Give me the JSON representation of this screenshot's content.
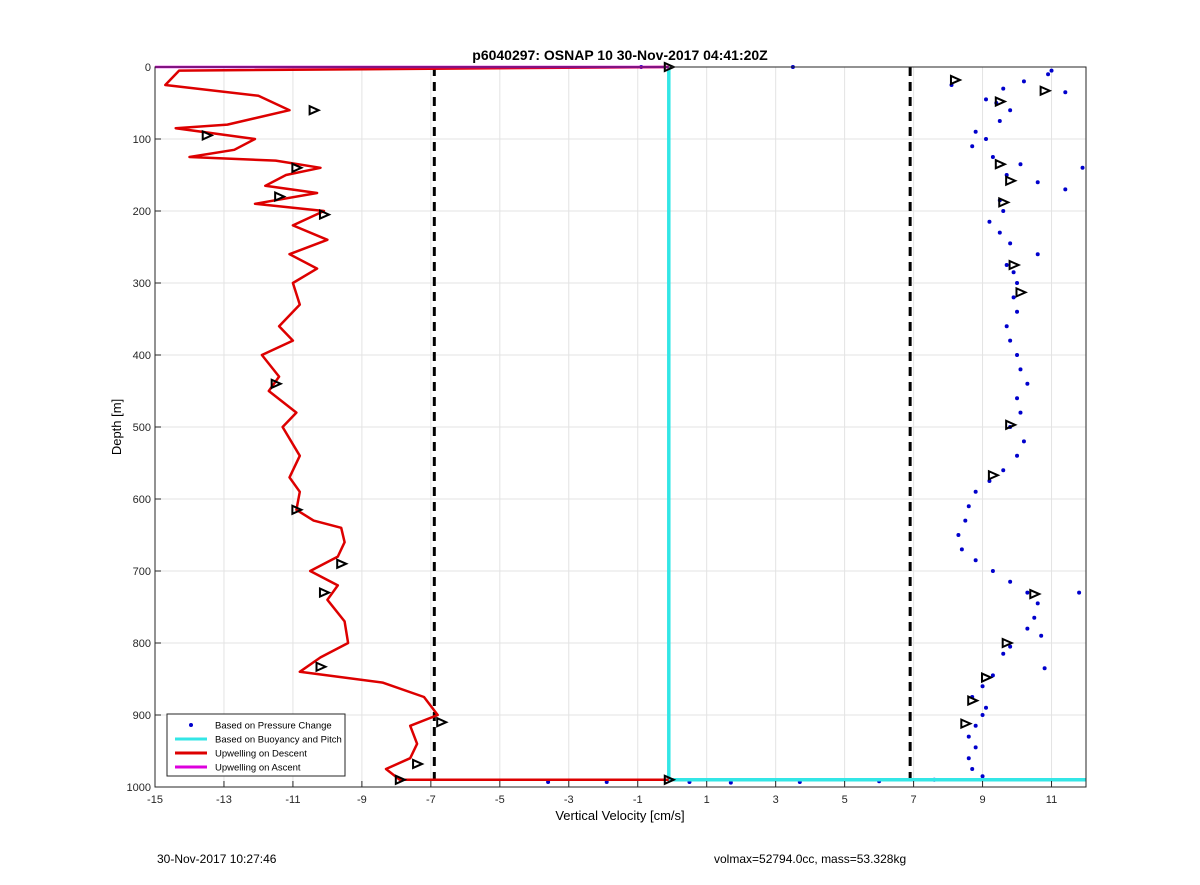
{
  "chart_data": {
    "type": "scatter",
    "title": "p6040297: OSNAP 10 30-Nov-2017 04:41:20Z",
    "xlabel": "Vertical Velocity [cm/s]",
    "ylabel": "Depth [m]",
    "xlim": [
      -15,
      12
    ],
    "ylim": [
      0,
      1000
    ],
    "y_reversed": true,
    "xticks": [
      -15,
      -13,
      -11,
      -9,
      -7,
      -5,
      -3,
      -1,
      1,
      3,
      5,
      7,
      9,
      11
    ],
    "yticks": [
      0,
      100,
      200,
      300,
      400,
      500,
      600,
      700,
      800,
      900,
      1000
    ],
    "grid": true,
    "legend_location": "bottom-left",
    "reference_lines": [
      {
        "x": -6.9,
        "style": "dashed",
        "color": "#000000"
      },
      {
        "x": 6.9,
        "style": "dashed",
        "color": "#000000"
      }
    ],
    "series": [
      {
        "name": "Based on Pressure Change",
        "style": "markers",
        "color": "#0000cc",
        "points": [
          [
            3.5,
            0
          ],
          [
            -0.9,
            0
          ],
          [
            11.0,
            5
          ],
          [
            10.9,
            10
          ],
          [
            10.2,
            20
          ],
          [
            8.1,
            25
          ],
          [
            9.6,
            30
          ],
          [
            11.4,
            35
          ],
          [
            9.1,
            45
          ],
          [
            9.4,
            50
          ],
          [
            9.8,
            60
          ],
          [
            9.5,
            75
          ],
          [
            8.8,
            90
          ],
          [
            9.1,
            100
          ],
          [
            8.7,
            110
          ],
          [
            9.3,
            125
          ],
          [
            10.1,
            135
          ],
          [
            11.9,
            140
          ],
          [
            9.7,
            150
          ],
          [
            10.6,
            160
          ],
          [
            11.4,
            170
          ],
          [
            9.5,
            185
          ],
          [
            9.6,
            200
          ],
          [
            9.2,
            215
          ],
          [
            9.5,
            230
          ],
          [
            9.8,
            245
          ],
          [
            10.6,
            260
          ],
          [
            9.7,
            275
          ],
          [
            9.9,
            285
          ],
          [
            10.0,
            300
          ],
          [
            9.9,
            320
          ],
          [
            10.0,
            340
          ],
          [
            9.7,
            360
          ],
          [
            9.8,
            380
          ],
          [
            10.0,
            400
          ],
          [
            10.1,
            420
          ],
          [
            10.3,
            440
          ],
          [
            10.0,
            460
          ],
          [
            10.1,
            480
          ],
          [
            9.8,
            500
          ],
          [
            10.2,
            520
          ],
          [
            10.0,
            540
          ],
          [
            9.6,
            560
          ],
          [
            9.2,
            575
          ],
          [
            8.8,
            590
          ],
          [
            8.6,
            610
          ],
          [
            8.5,
            630
          ],
          [
            8.3,
            650
          ],
          [
            8.4,
            670
          ],
          [
            8.8,
            685
          ],
          [
            9.3,
            700
          ],
          [
            9.8,
            715
          ],
          [
            10.3,
            730
          ],
          [
            11.8,
            730
          ],
          [
            10.6,
            745
          ],
          [
            10.5,
            765
          ],
          [
            10.3,
            780
          ],
          [
            10.7,
            790
          ],
          [
            9.8,
            805
          ],
          [
            9.6,
            815
          ],
          [
            10.8,
            835
          ],
          [
            9.3,
            845
          ],
          [
            9.0,
            860
          ],
          [
            8.7,
            875
          ],
          [
            9.1,
            890
          ],
          [
            9.0,
            900
          ],
          [
            8.8,
            915
          ],
          [
            8.6,
            930
          ],
          [
            8.8,
            945
          ],
          [
            8.6,
            960
          ],
          [
            8.7,
            975
          ],
          [
            9.0,
            985
          ],
          [
            7.6,
            990
          ],
          [
            6.0,
            992
          ],
          [
            3.7,
            993
          ],
          [
            1.7,
            994
          ],
          [
            0.5,
            993
          ],
          [
            -1.9,
            993
          ],
          [
            -3.6,
            993
          ]
        ]
      },
      {
        "name": "Based on Buoyancy and Pitch",
        "style": "line",
        "color": "#33e6e6",
        "points": [
          [
            -0.1,
            0
          ],
          [
            -0.1,
            100
          ],
          [
            -0.1,
            200
          ],
          [
            -0.1,
            300
          ],
          [
            -0.1,
            400
          ],
          [
            -0.1,
            500
          ],
          [
            -0.1,
            600
          ],
          [
            -0.1,
            700
          ],
          [
            -0.1,
            800
          ],
          [
            -0.1,
            900
          ],
          [
            -0.1,
            990
          ],
          [
            12.0,
            990
          ]
        ]
      },
      {
        "name": "Upwelling on Descent",
        "style": "line",
        "color": "#dd0000",
        "points": [
          [
            -0.1,
            0
          ],
          [
            -14.3,
            5
          ],
          [
            -14.7,
            25
          ],
          [
            -12.0,
            40
          ],
          [
            -11.1,
            60
          ],
          [
            -12.9,
            80
          ],
          [
            -14.4,
            85
          ],
          [
            -12.1,
            100
          ],
          [
            -12.7,
            115
          ],
          [
            -14.0,
            125
          ],
          [
            -11.5,
            130
          ],
          [
            -10.2,
            140
          ],
          [
            -11.2,
            150
          ],
          [
            -11.8,
            165
          ],
          [
            -10.3,
            175
          ],
          [
            -12.1,
            190
          ],
          [
            -10.1,
            200
          ],
          [
            -11.0,
            220
          ],
          [
            -10.0,
            240
          ],
          [
            -11.1,
            260
          ],
          [
            -10.3,
            280
          ],
          [
            -11.0,
            300
          ],
          [
            -10.8,
            330
          ],
          [
            -11.4,
            360
          ],
          [
            -11.0,
            380
          ],
          [
            -11.9,
            400
          ],
          [
            -11.4,
            430
          ],
          [
            -11.7,
            450
          ],
          [
            -10.9,
            480
          ],
          [
            -11.3,
            500
          ],
          [
            -10.8,
            540
          ],
          [
            -11.1,
            570
          ],
          [
            -10.8,
            590
          ],
          [
            -10.9,
            615
          ],
          [
            -10.4,
            630
          ],
          [
            -9.6,
            640
          ],
          [
            -9.5,
            660
          ],
          [
            -9.7,
            680
          ],
          [
            -10.5,
            700
          ],
          [
            -9.7,
            720
          ],
          [
            -10.0,
            740
          ],
          [
            -9.5,
            770
          ],
          [
            -9.4,
            800
          ],
          [
            -10.2,
            820
          ],
          [
            -10.8,
            840
          ],
          [
            -8.4,
            855
          ],
          [
            -7.2,
            875
          ],
          [
            -6.8,
            900
          ],
          [
            -7.6,
            915
          ],
          [
            -7.4,
            940
          ],
          [
            -7.6,
            960
          ],
          [
            -8.3,
            975
          ],
          [
            -7.9,
            990
          ],
          [
            -0.1,
            990
          ]
        ]
      },
      {
        "name": "Upwelling on Ascent",
        "style": "line",
        "color": "#dd00dd",
        "points": [
          [
            -15,
            0
          ],
          [
            -0.1,
            0
          ]
        ]
      }
    ],
    "direction_markers": [
      [
        -10.4,
        60
      ],
      [
        -13.5,
        95
      ],
      [
        -10.9,
        140
      ],
      [
        -11.4,
        180
      ],
      [
        -10.1,
        205
      ],
      [
        -11.5,
        440
      ],
      [
        -10.9,
        615
      ],
      [
        -9.6,
        690
      ],
      [
        -10.1,
        730
      ],
      [
        -10.2,
        833
      ],
      [
        -6.7,
        910
      ],
      [
        -7.4,
        968
      ],
      [
        -7.9,
        990
      ],
      [
        -0.1,
        0
      ],
      [
        -0.1,
        990
      ],
      [
        8.2,
        18
      ],
      [
        10.8,
        33
      ],
      [
        9.5,
        48
      ],
      [
        9.5,
        135
      ],
      [
        9.8,
        158
      ],
      [
        9.6,
        188
      ],
      [
        9.9,
        275
      ],
      [
        10.1,
        313
      ],
      [
        9.8,
        497
      ],
      [
        9.3,
        567
      ],
      [
        10.5,
        732
      ],
      [
        9.7,
        800
      ],
      [
        9.1,
        848
      ],
      [
        8.7,
        880
      ],
      [
        8.5,
        912
      ]
    ]
  },
  "footer": {
    "timestamp": "30-Nov-2017 10:27:46",
    "info": "volmax=52794.0cc, mass=53.328kg"
  },
  "colors": {
    "pressure": "#0000cc",
    "buoyancy": "#33e6e6",
    "descent": "#dd0000",
    "ascent": "#dd00dd"
  }
}
